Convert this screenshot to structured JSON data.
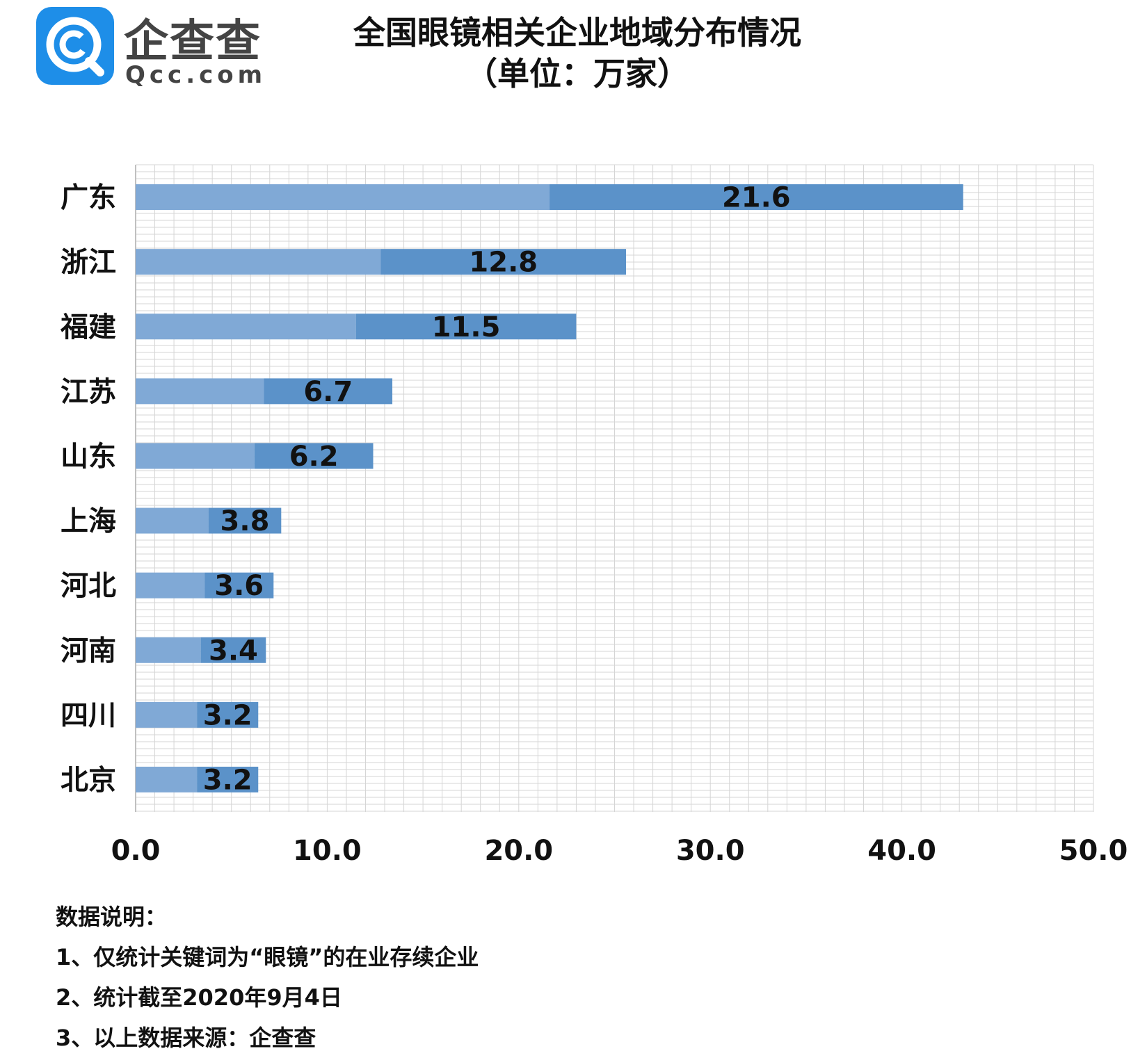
{
  "brand": {
    "name": "企查查",
    "domain": "Qcc.com",
    "accent_color": "#1e8ee8"
  },
  "chart_data": {
    "type": "bar",
    "orientation": "horizontal",
    "title": "全国眼镜相关企业地域分布情况",
    "subtitle": "（单位：万家）",
    "categories": [
      "广东",
      "浙江",
      "福建",
      "江苏",
      "山东",
      "上海",
      "河北",
      "河南",
      "四川",
      "北京"
    ],
    "values": [
      21.6,
      12.8,
      11.5,
      6.7,
      6.2,
      3.8,
      3.6,
      3.4,
      3.2,
      3.2
    ],
    "xlim": [
      0,
      50
    ],
    "x_ticks": [
      "0.0",
      "10.0",
      "20.0",
      "30.0",
      "40.0",
      "50.0"
    ],
    "grid": true,
    "legend": "none",
    "colors": {
      "bar_light": "#80a9d6",
      "bar_dark": "#5b92c9",
      "grid": "#d5d5d5"
    }
  },
  "notes": {
    "heading": "数据说明：",
    "items": [
      "1、仅统计关键词为“眼镜”的在业存续企业",
      "2、统计截至2020年9月4日",
      "3、以上数据来源：企查查"
    ]
  }
}
